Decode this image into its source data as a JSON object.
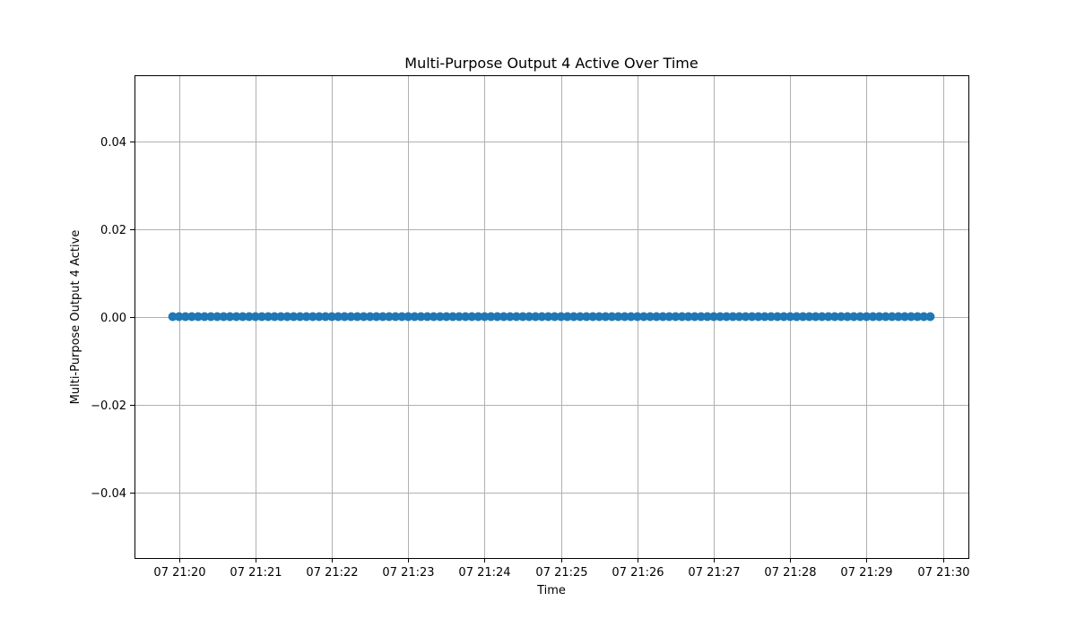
{
  "chart_data": {
    "type": "scatter",
    "title": "Multi-Purpose Output 4 Active Over Time",
    "xlabel": "Time",
    "ylabel": "Multi-Purpose Output 4 Active",
    "x_ticks": [
      "07 21:20",
      "07 21:21",
      "07 21:22",
      "07 21:23",
      "07 21:24",
      "07 21:25",
      "07 21:26",
      "07 21:27",
      "07 21:28",
      "07 21:29",
      "07 21:30"
    ],
    "y_ticks": [
      "−0.04",
      "−0.02",
      "0.00",
      "0.02",
      "0.04"
    ],
    "ylim": [
      -0.055,
      0.055
    ],
    "xlim": [
      "07 21:19:25",
      "07 21:30:20"
    ],
    "grid": true,
    "series_color": "#1f77b4",
    "series": [
      {
        "x_start": "07 21:19:55",
        "x_end": "07 21:29:50",
        "x_interval_seconds": 5,
        "y": 0
      }
    ]
  }
}
